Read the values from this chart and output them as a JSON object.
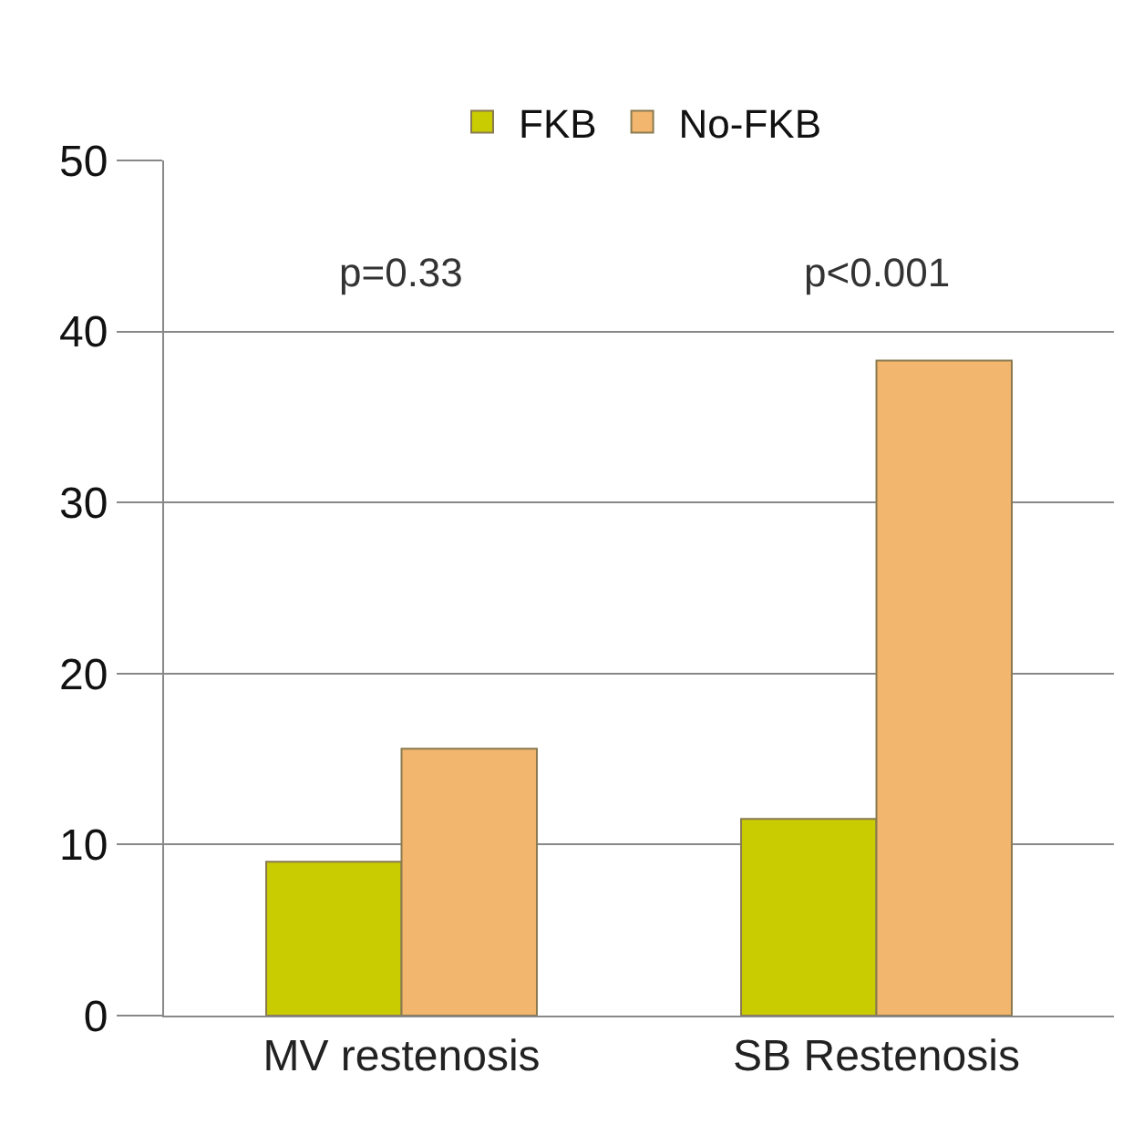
{
  "chart_data": {
    "type": "bar",
    "categories": [
      "MV restenosis",
      "SB Restenosis"
    ],
    "series": [
      {
        "name": "FKB",
        "color": "#c8cc00",
        "values": [
          9.0,
          11.5
        ]
      },
      {
        "name": "No-FKB",
        "color": "#f2b66e",
        "values": [
          15.6,
          38.3
        ]
      }
    ],
    "ylim": [
      0,
      50
    ],
    "yticks": [
      0,
      10,
      20,
      30,
      40,
      50
    ],
    "grid": "y",
    "legend": "top",
    "annotations": [
      "p=0.33",
      "p<0.001"
    ]
  }
}
